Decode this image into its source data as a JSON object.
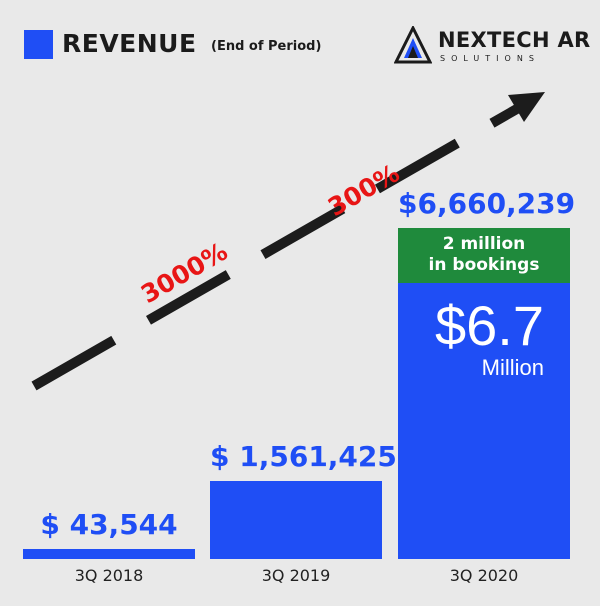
{
  "legend": {
    "title": "REVENUE",
    "subtitle": "(End of Period)",
    "color": "#1f4ef5"
  },
  "logo": {
    "name": "NEXTECH AR",
    "sub": "SOLUTIONS",
    "icon": "triangle-mountain-icon"
  },
  "chart_data": {
    "type": "bar",
    "categories": [
      "3Q 2018",
      "3Q 2019",
      "3Q 2020"
    ],
    "values": [
      43544,
      1561425,
      6660239
    ],
    "value_labels": [
      "$ 43,544",
      "$ 1,561,425",
      "$6,660,239"
    ],
    "ylim": [
      0,
      6660239
    ],
    "bar_color": "#1f4ef5",
    "bookings": {
      "text_line1": "2 million",
      "text_line2": "in bookings",
      "value": 2000000,
      "color": "#1f8a3c"
    },
    "callout": {
      "value": "$6.7",
      "unit": "Million"
    },
    "growth_annotations": [
      "3000%",
      "300%"
    ],
    "growth_color": "#e81515",
    "arrow_color": "#1c1c1c"
  }
}
